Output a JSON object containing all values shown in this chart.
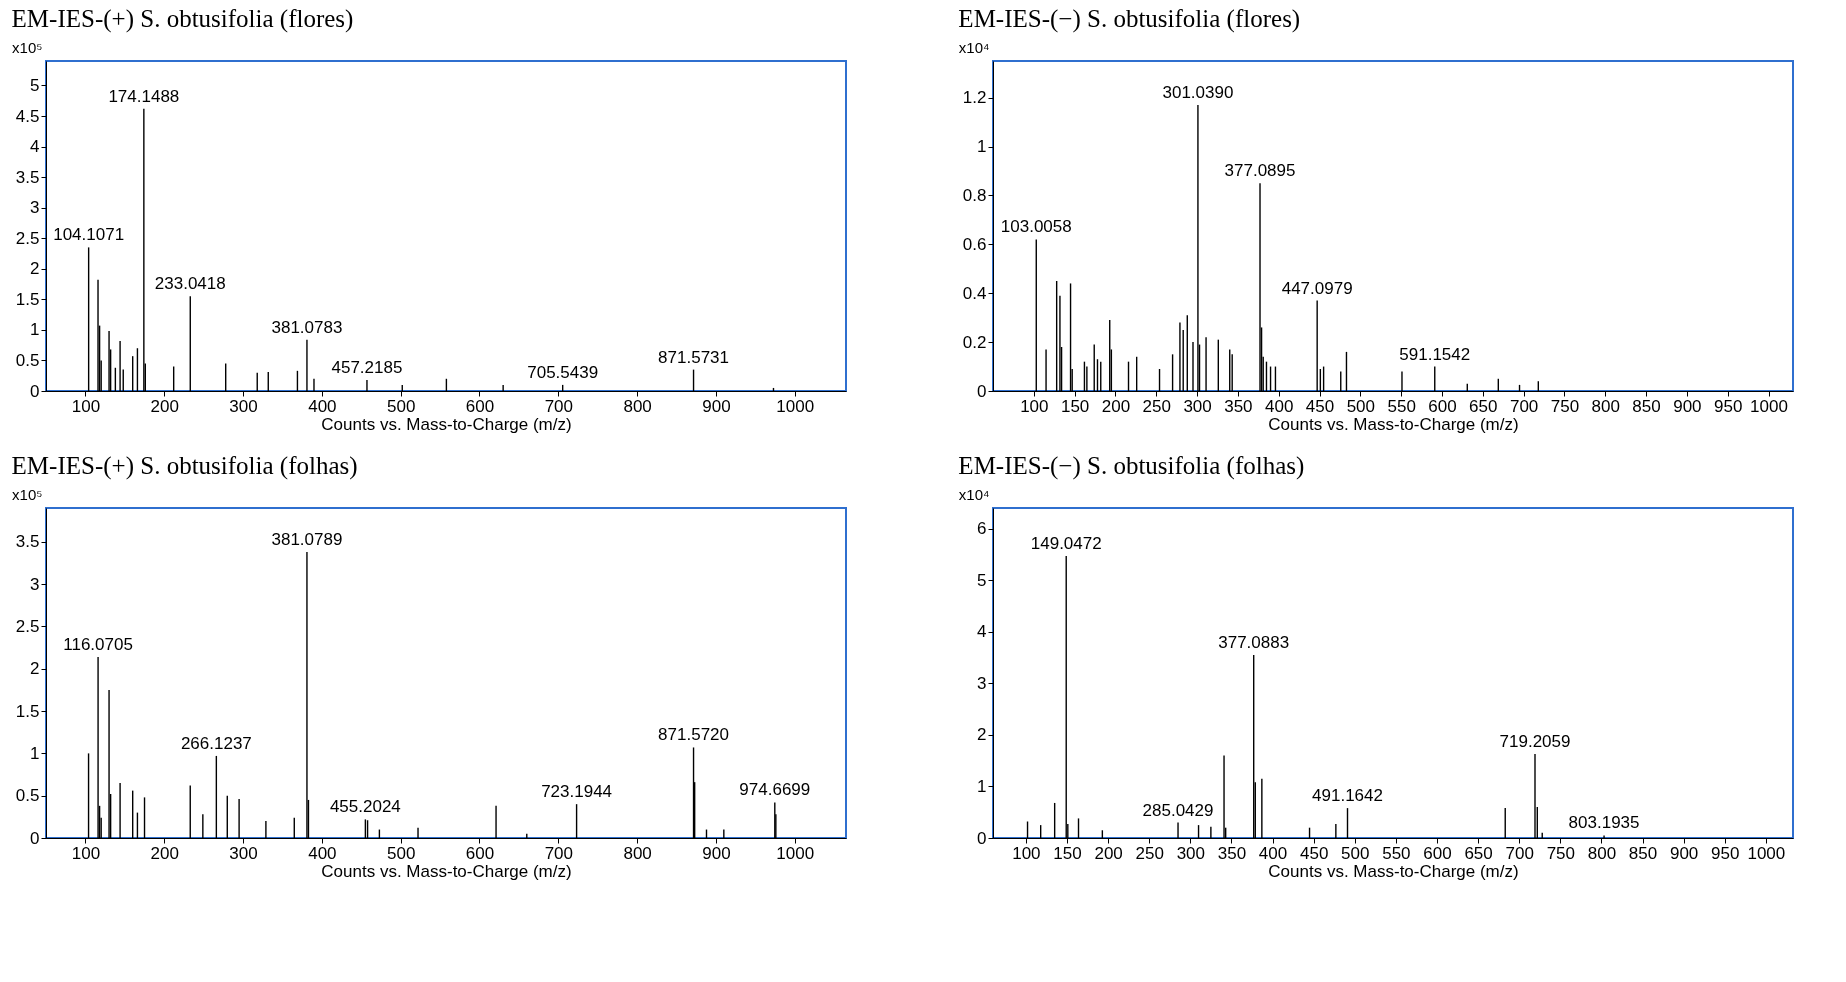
{
  "chart_data": [
    {
      "type": "bar",
      "title": "EM-IES-(+) S. obtusifolia (flores)",
      "xlabel": "Counts vs. Mass-to-Charge (m/z)",
      "ylabel": "x10⁵",
      "color": "#000000",
      "grid": false,
      "x": [
        104.1071,
        116,
        118,
        120,
        130,
        132,
        138,
        144,
        148,
        160,
        166,
        174.1488,
        176,
        212,
        233.0418,
        278,
        318,
        332,
        369,
        381.0783,
        390,
        457.2185,
        502,
        558,
        630,
        705.5439,
        871.5731,
        973
      ],
      "values": [
        2.35,
        1.82,
        1.07,
        0.5,
        0.98,
        0.68,
        0.38,
        0.82,
        0.35,
        0.57,
        0.7,
        4.62,
        0.45,
        0.4,
        1.55,
        0.45,
        0.3,
        0.31,
        0.33,
        0.84,
        0.2,
        0.18,
        0.1,
        0.2,
        0.1,
        0.1,
        0.35,
        0.05
      ],
      "xlim": [
        50,
        1065
      ],
      "xticks": [
        100,
        200,
        300,
        400,
        500,
        600,
        700,
        800,
        900,
        1000
      ],
      "ylim": [
        0,
        5.4
      ],
      "yticks": [
        0,
        0.5,
        1,
        1.5,
        2,
        2.5,
        3,
        3.5,
        4,
        4.5,
        5
      ],
      "annotations": [
        {
          "text": "104.1071",
          "x": 104.1071,
          "y": 2.35
        },
        {
          "text": "174.1488",
          "x": 174.1488,
          "y": 4.62
        },
        {
          "text": "233.0418",
          "x": 233.0418,
          "y": 1.55
        },
        {
          "text": "381.0783",
          "x": 381.0783,
          "y": 0.84
        },
        {
          "text": "457.2185",
          "x": 457.2185,
          "y": 0.18
        },
        {
          "text": "705.5439",
          "x": 705.5439,
          "y": 0.1
        },
        {
          "text": "871.5731",
          "x": 871.5731,
          "y": 0.35
        }
      ]
    },
    {
      "type": "bar",
      "title": "EM-IES-(−) S. obtusifolia (flores)",
      "xlabel": "Counts vs. Mass-to-Charge (m/z)",
      "ylabel": "x10⁴",
      "color": "#000000",
      "grid": false,
      "x": [
        103.0058,
        115,
        128,
        132,
        134,
        145,
        147,
        162,
        165,
        174,
        178,
        182,
        193,
        195,
        216,
        226,
        254,
        270,
        279,
        283,
        288,
        295,
        301.039,
        303,
        311,
        326,
        340,
        343,
        377.0895,
        379,
        381,
        385,
        390,
        396,
        447.0979,
        451,
        455,
        476,
        483,
        551,
        591.1542,
        631,
        669,
        695,
        718
      ],
      "values": [
        0.62,
        0.17,
        0.45,
        0.39,
        0.18,
        0.44,
        0.09,
        0.12,
        0.1,
        0.19,
        0.13,
        0.12,
        0.29,
        0.17,
        0.12,
        0.14,
        0.09,
        0.15,
        0.28,
        0.25,
        0.31,
        0.2,
        1.17,
        0.19,
        0.22,
        0.21,
        0.17,
        0.15,
        0.85,
        0.26,
        0.14,
        0.12,
        0.1,
        0.1,
        0.37,
        0.09,
        0.1,
        0.08,
        0.16,
        0.08,
        0.1,
        0.03,
        0.05,
        0.025,
        0.04
      ],
      "xlim": [
        50,
        1030
      ],
      "xticks": [
        100,
        150,
        200,
        250,
        300,
        350,
        400,
        450,
        500,
        550,
        600,
        650,
        700,
        750,
        800,
        850,
        900,
        950,
        1000
      ],
      "ylim": [
        0,
        1.35
      ],
      "yticks": [
        0,
        0.2,
        0.4,
        0.6,
        0.8,
        1,
        1.2
      ],
      "annotations": [
        {
          "text": "103.0058",
          "x": 103.0058,
          "y": 0.62
        },
        {
          "text": "301.0390",
          "x": 301.039,
          "y": 1.17
        },
        {
          "text": "377.0895",
          "x": 377.0895,
          "y": 0.85
        },
        {
          "text": "447.0979",
          "x": 447.0979,
          "y": 0.37
        },
        {
          "text": "591.1542",
          "x": 591.1542,
          "y": 0.1
        }
      ]
    },
    {
      "type": "bar",
      "title": "EM-IES-(+) S. obtusifolia (folhas)",
      "xlabel": "Counts vs. Mass-to-Charge (m/z)",
      "ylabel": "x10⁵",
      "color": "#000000",
      "grid": false,
      "x": [
        104,
        116.0705,
        118,
        120,
        130,
        132,
        144,
        160,
        166,
        175,
        233,
        249,
        266.1237,
        280,
        295,
        329,
        365,
        381.0789,
        383,
        455.2024,
        458,
        473,
        522,
        621,
        660,
        723.1944,
        871.572,
        873,
        888,
        910,
        974.6699,
        976
      ],
      "values": [
        1.0,
        2.14,
        0.38,
        0.24,
        1.75,
        0.52,
        0.65,
        0.56,
        0.3,
        0.48,
        0.62,
        0.28,
        0.97,
        0.5,
        0.46,
        0.2,
        0.24,
        3.38,
        0.45,
        0.22,
        0.21,
        0.1,
        0.12,
        0.38,
        0.05,
        0.4,
        1.07,
        0.66,
        0.1,
        0.1,
        0.42,
        0.28
      ],
      "xlim": [
        50,
        1065
      ],
      "xticks": [
        100,
        200,
        300,
        400,
        500,
        600,
        700,
        800,
        900,
        1000
      ],
      "ylim": [
        0,
        3.9
      ],
      "yticks": [
        0,
        0.5,
        1,
        1.5,
        2,
        2.5,
        3,
        3.5
      ],
      "annotations": [
        {
          "text": "116.0705",
          "x": 116.0705,
          "y": 2.14
        },
        {
          "text": "266.1237",
          "x": 266.1237,
          "y": 0.97
        },
        {
          "text": "381.0789",
          "x": 381.0789,
          "y": 3.38
        },
        {
          "text": "455.2024",
          "x": 455.2024,
          "y": 0.22
        },
        {
          "text": "723.1944",
          "x": 723.1944,
          "y": 0.4
        },
        {
          "text": "871.5720",
          "x": 871.572,
          "y": 1.07
        },
        {
          "text": "974.6699",
          "x": 974.6699,
          "y": 0.42
        }
      ]
    },
    {
      "type": "bar",
      "title": "EM-IES-(−) S. obtusifolia (folhas)",
      "xlabel": "Counts vs. Mass-to-Charge (m/z)",
      "ylabel": "x10⁴",
      "color": "#000000",
      "grid": false,
      "x": [
        102,
        118,
        135,
        149.0472,
        151,
        164,
        193,
        285.0429,
        310,
        325,
        341,
        343,
        377.0883,
        379,
        387,
        445,
        477,
        491.1642,
        683,
        719.2059,
        722,
        728,
        803.1935
      ],
      "values": [
        0.32,
        0.25,
        0.68,
        5.47,
        0.27,
        0.38,
        0.15,
        0.3,
        0.25,
        0.22,
        1.6,
        0.2,
        3.55,
        1.08,
        1.15,
        0.2,
        0.27,
        0.58,
        0.58,
        1.63,
        0.6,
        0.1,
        0.05
      ],
      "xlim": [
        60,
        1033
      ],
      "xticks": [
        100,
        150,
        200,
        250,
        300,
        350,
        400,
        450,
        500,
        550,
        600,
        650,
        700,
        750,
        800,
        850,
        900,
        950,
        1000
      ],
      "ylim": [
        0,
        6.4
      ],
      "yticks": [
        0,
        1,
        2,
        3,
        4,
        5,
        6
      ],
      "annotations": [
        {
          "text": "149.0472",
          "x": 149.0472,
          "y": 5.47
        },
        {
          "text": "285.0429",
          "x": 285.0429,
          "y": 0.3
        },
        {
          "text": "377.0883",
          "x": 377.0883,
          "y": 3.55
        },
        {
          "text": "491.1642",
          "x": 491.1642,
          "y": 0.58
        },
        {
          "text": "719.2059",
          "x": 719.2059,
          "y": 1.63
        },
        {
          "text": "803.1935",
          "x": 803.1935,
          "y": 0.05
        }
      ]
    }
  ]
}
